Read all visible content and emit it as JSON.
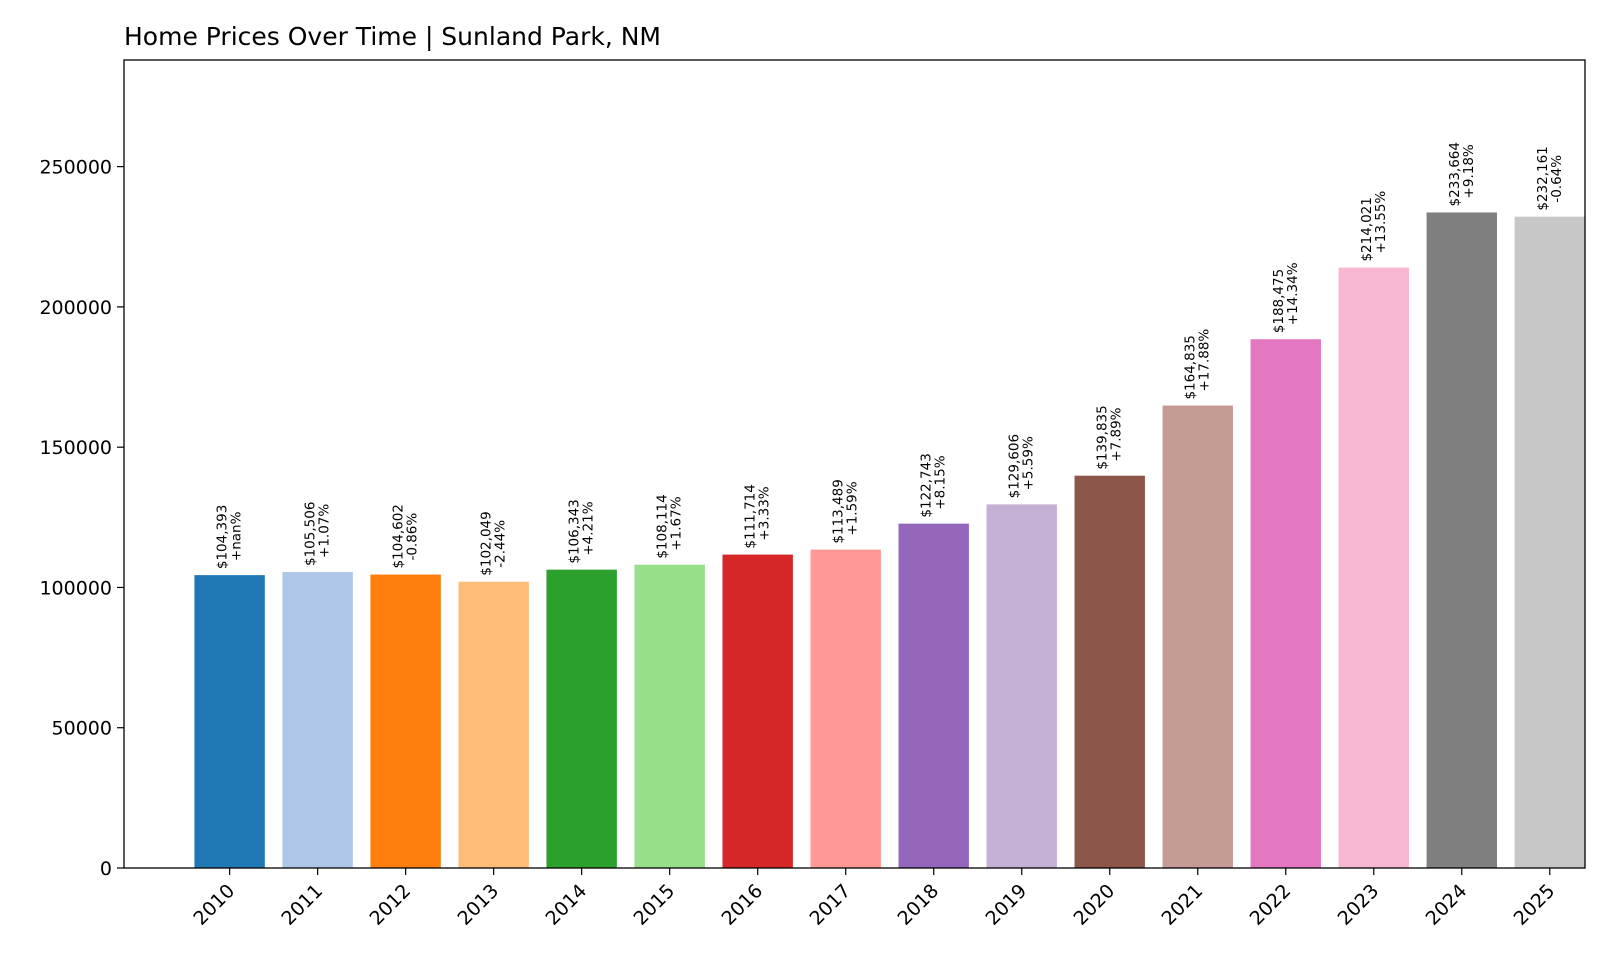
{
  "chart_data": {
    "type": "bar",
    "title": "Home Prices Over Time | Sunland Park, NM",
    "xlabel": "",
    "ylabel": "",
    "ylim": [
      0,
      288000
    ],
    "yticks": [
      0,
      50000,
      100000,
      150000,
      200000,
      250000
    ],
    "ytick_labels": [
      "0",
      "50000",
      "100000",
      "150000",
      "200000",
      "250000"
    ],
    "grid": false,
    "legend": "none",
    "categories": [
      "2010",
      "2011",
      "2012",
      "2013",
      "2014",
      "2015",
      "2016",
      "2017",
      "2018",
      "2019",
      "2020",
      "2021",
      "2022",
      "2023",
      "2024",
      "2025"
    ],
    "values": [
      104393,
      105506,
      104602,
      102049,
      106343,
      108114,
      111714,
      113489,
      122743,
      129606,
      139835,
      164835,
      188475,
      214021,
      233664,
      232161
    ],
    "value_labels": [
      "$104,393",
      "$105,506",
      "$104,602",
      "$102,049",
      "$106,343",
      "$108,114",
      "$111,714",
      "$113,489",
      "$122,743",
      "$129,606",
      "$139,835",
      "$164,835",
      "$188,475",
      "$214,021",
      "$233,664",
      "$232,161"
    ],
    "change_labels": [
      "+nan%",
      "+1.07%",
      "-0.86%",
      "-2.44%",
      "+4.21%",
      "+1.67%",
      "+3.33%",
      "+1.59%",
      "+8.15%",
      "+5.59%",
      "+7.89%",
      "+17.88%",
      "+14.34%",
      "+13.55%",
      "+9.18%",
      "-0.64%"
    ],
    "colors": [
      "#1f77b4",
      "#aec7e8",
      "#ff7f0e",
      "#ffbb78",
      "#2ca02c",
      "#98df8a",
      "#d62728",
      "#ff9896",
      "#9467bd",
      "#c5b0d5",
      "#8c564b",
      "#c49c94",
      "#e377c2",
      "#f7b6d2",
      "#7f7f7f",
      "#c7c7c7"
    ]
  }
}
